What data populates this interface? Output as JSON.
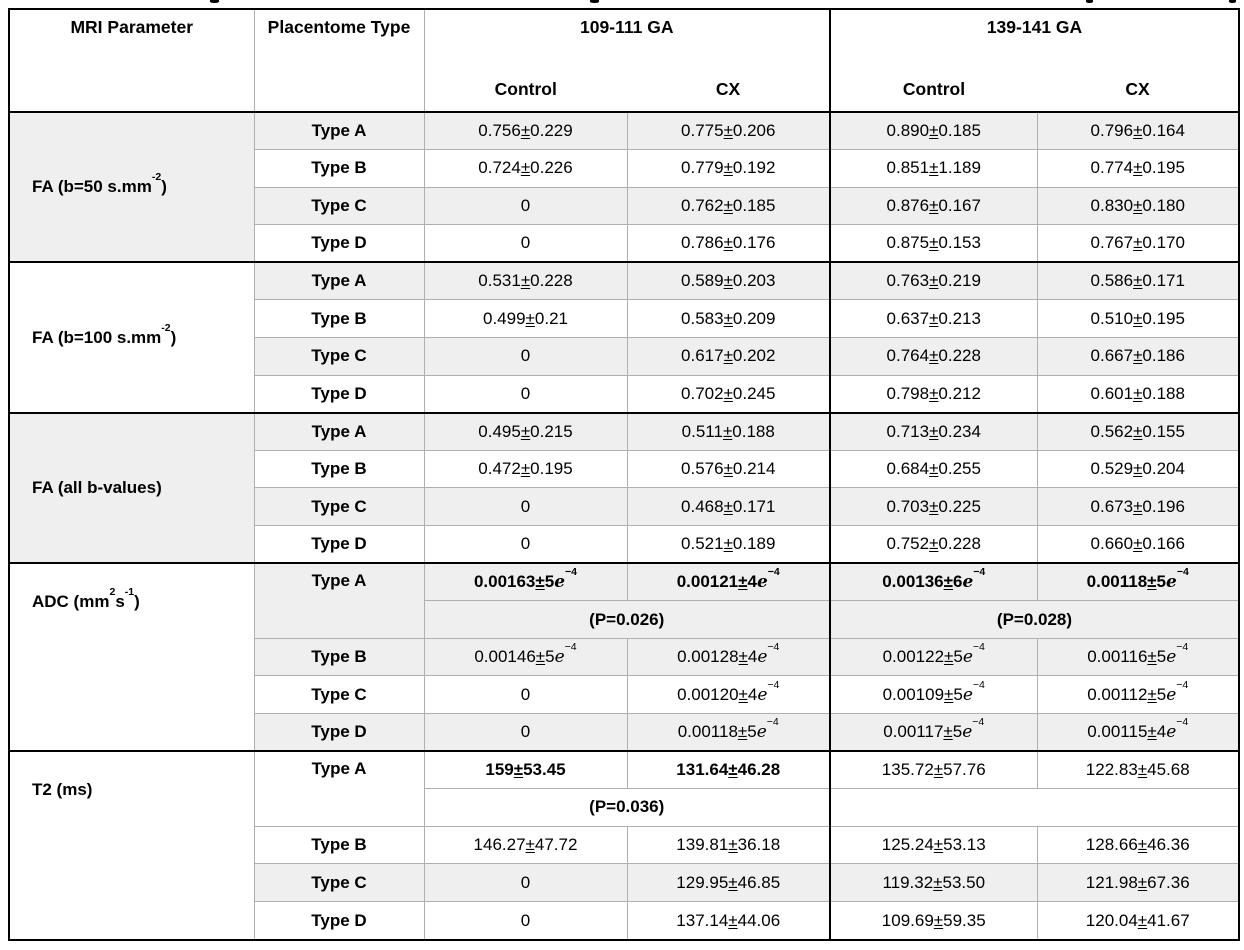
{
  "table": {
    "colors": {
      "row_shade": "#efefef",
      "grid_line": "#b0b0b0",
      "frame": "#000000"
    },
    "header": {
      "param": "MRI Parameter",
      "placentome": "Placentome Type",
      "groups": [
        {
          "label": "109-111 GA",
          "subcols": [
            "Control",
            "CX"
          ]
        },
        {
          "label": "139-141 GA",
          "subcols": [
            "Control",
            "CX"
          ]
        }
      ]
    },
    "groups": [
      {
        "parameter": [
          {
            "t": "FA (b=50 s.mm"
          },
          {
            "t": "-2",
            "sup": true
          },
          {
            "t": ")"
          }
        ],
        "param_shaded": true,
        "rows": [
          {
            "type": "Type A",
            "shaded": true,
            "cells": [
              "0.756±0.229",
              "0.775±0.206",
              "0.890±0.185",
              "0.796±0.164"
            ]
          },
          {
            "type": "Type B",
            "shaded": false,
            "cells": [
              "0.724±0.226",
              "0.779±0.192",
              "0.851±1.189",
              "0.774±0.195"
            ]
          },
          {
            "type": "Type C",
            "shaded": true,
            "cells": [
              "0",
              "0.762±0.185",
              "0.876±0.167",
              "0.830±0.180"
            ]
          },
          {
            "type": "Type D",
            "shaded": false,
            "cells": [
              "0",
              "0.786±0.176",
              "0.875±0.153",
              "0.767±0.170"
            ]
          }
        ]
      },
      {
        "parameter": [
          {
            "t": "FA (b=100 s.mm"
          },
          {
            "t": "-2",
            "sup": true
          },
          {
            "t": ")"
          }
        ],
        "param_shaded": false,
        "rows": [
          {
            "type": "Type A",
            "shaded": true,
            "cells": [
              "0.531±0.228",
              "0.589±0.203",
              "0.763±0.219",
              "0.586±0.171"
            ]
          },
          {
            "type": "Type B",
            "shaded": false,
            "cells": [
              "0.499±0.21",
              "0.583±0.209",
              "0.637±0.213",
              "0.510±0.195"
            ]
          },
          {
            "type": "Type C",
            "shaded": true,
            "cells": [
              "0",
              "0.617±0.202",
              "0.764±0.228",
              "0.667±0.186"
            ]
          },
          {
            "type": "Type D",
            "shaded": false,
            "cells": [
              "0",
              "0.702±0.245",
              "0.798±0.212",
              "0.601±0.188"
            ]
          }
        ]
      },
      {
        "parameter": [
          {
            "t": "FA (all b-values)"
          }
        ],
        "param_shaded": true,
        "rows": [
          {
            "type": "Type A",
            "shaded": true,
            "cells": [
              "0.495±0.215",
              "0.511±0.188",
              "0.713±0.234",
              "0.562±0.155"
            ]
          },
          {
            "type": "Type B",
            "shaded": false,
            "cells": [
              "0.472±0.195",
              "0.576±0.214",
              "0.684±0.255",
              "0.529±0.204"
            ]
          },
          {
            "type": "Type C",
            "shaded": true,
            "cells": [
              "0",
              "0.468±0.171",
              "0.703±0.225",
              "0.673±0.196"
            ]
          },
          {
            "type": "Type D",
            "shaded": false,
            "cells": [
              "0",
              "0.521±0.189",
              "0.752±0.228",
              "0.660±0.166"
            ]
          }
        ]
      },
      {
        "parameter": [
          {
            "t": "ADC (mm"
          },
          {
            "t": "2",
            "sup": true
          },
          {
            "t": "s"
          },
          {
            "t": "-1",
            "sup": true
          },
          {
            "t": ")"
          }
        ],
        "param_shaded": false,
        "rows": [
          {
            "type": "Type A",
            "type_rowspan": 2,
            "shaded": true,
            "bold": [
              0,
              1,
              2,
              3
            ],
            "cells": [
              "0.00163±5e-4",
              "0.00121±4e-4",
              "0.00136±6e-4",
              "0.00118±5e-4"
            ]
          },
          {
            "p_row": true,
            "shaded": true,
            "left": "(P=0.026)",
            "right": "(P=0.028)"
          },
          {
            "type": "Type B",
            "shaded": true,
            "cells": [
              "0.00146±5e-4",
              "0.00128±4e-4",
              "0.00122±5e-4",
              "0.00116±5e-4"
            ]
          },
          {
            "type": "Type C",
            "shaded": false,
            "cells": [
              "0",
              "0.00120±4e-4",
              "0.00109±5e-4",
              "0.00112±5e-4"
            ]
          },
          {
            "type": "Type D",
            "shaded": true,
            "cells": [
              "0",
              "0.00118±5e-4",
              "0.00117±5e-4",
              "0.00115±4e-4"
            ]
          }
        ]
      },
      {
        "parameter": [
          {
            "t": "T2 (ms)"
          }
        ],
        "param_shaded": false,
        "rows": [
          {
            "type": "Type A",
            "type_rowspan": 2,
            "shaded": false,
            "bold": [
              0,
              1
            ],
            "cells": [
              "159±53.45",
              "131.64±46.28",
              "135.72±57.76",
              "122.83±45.68"
            ]
          },
          {
            "p_row": true,
            "shaded": false,
            "left": "(P=0.036)",
            "right": ""
          },
          {
            "type": "Type B",
            "shaded": false,
            "cells": [
              "146.27±47.72",
              "139.81±36.18",
              "125.24±53.13",
              "128.66±46.36"
            ]
          },
          {
            "type": "Type C",
            "shaded": true,
            "cells": [
              "0",
              "129.95±46.85",
              "119.32±53.50",
              "121.98±67.36"
            ]
          },
          {
            "type": "Type D",
            "shaded": false,
            "cells": [
              "0",
              "137.14±44.06",
              "109.69±59.35",
              "120.04±41.67"
            ]
          }
        ]
      }
    ]
  }
}
